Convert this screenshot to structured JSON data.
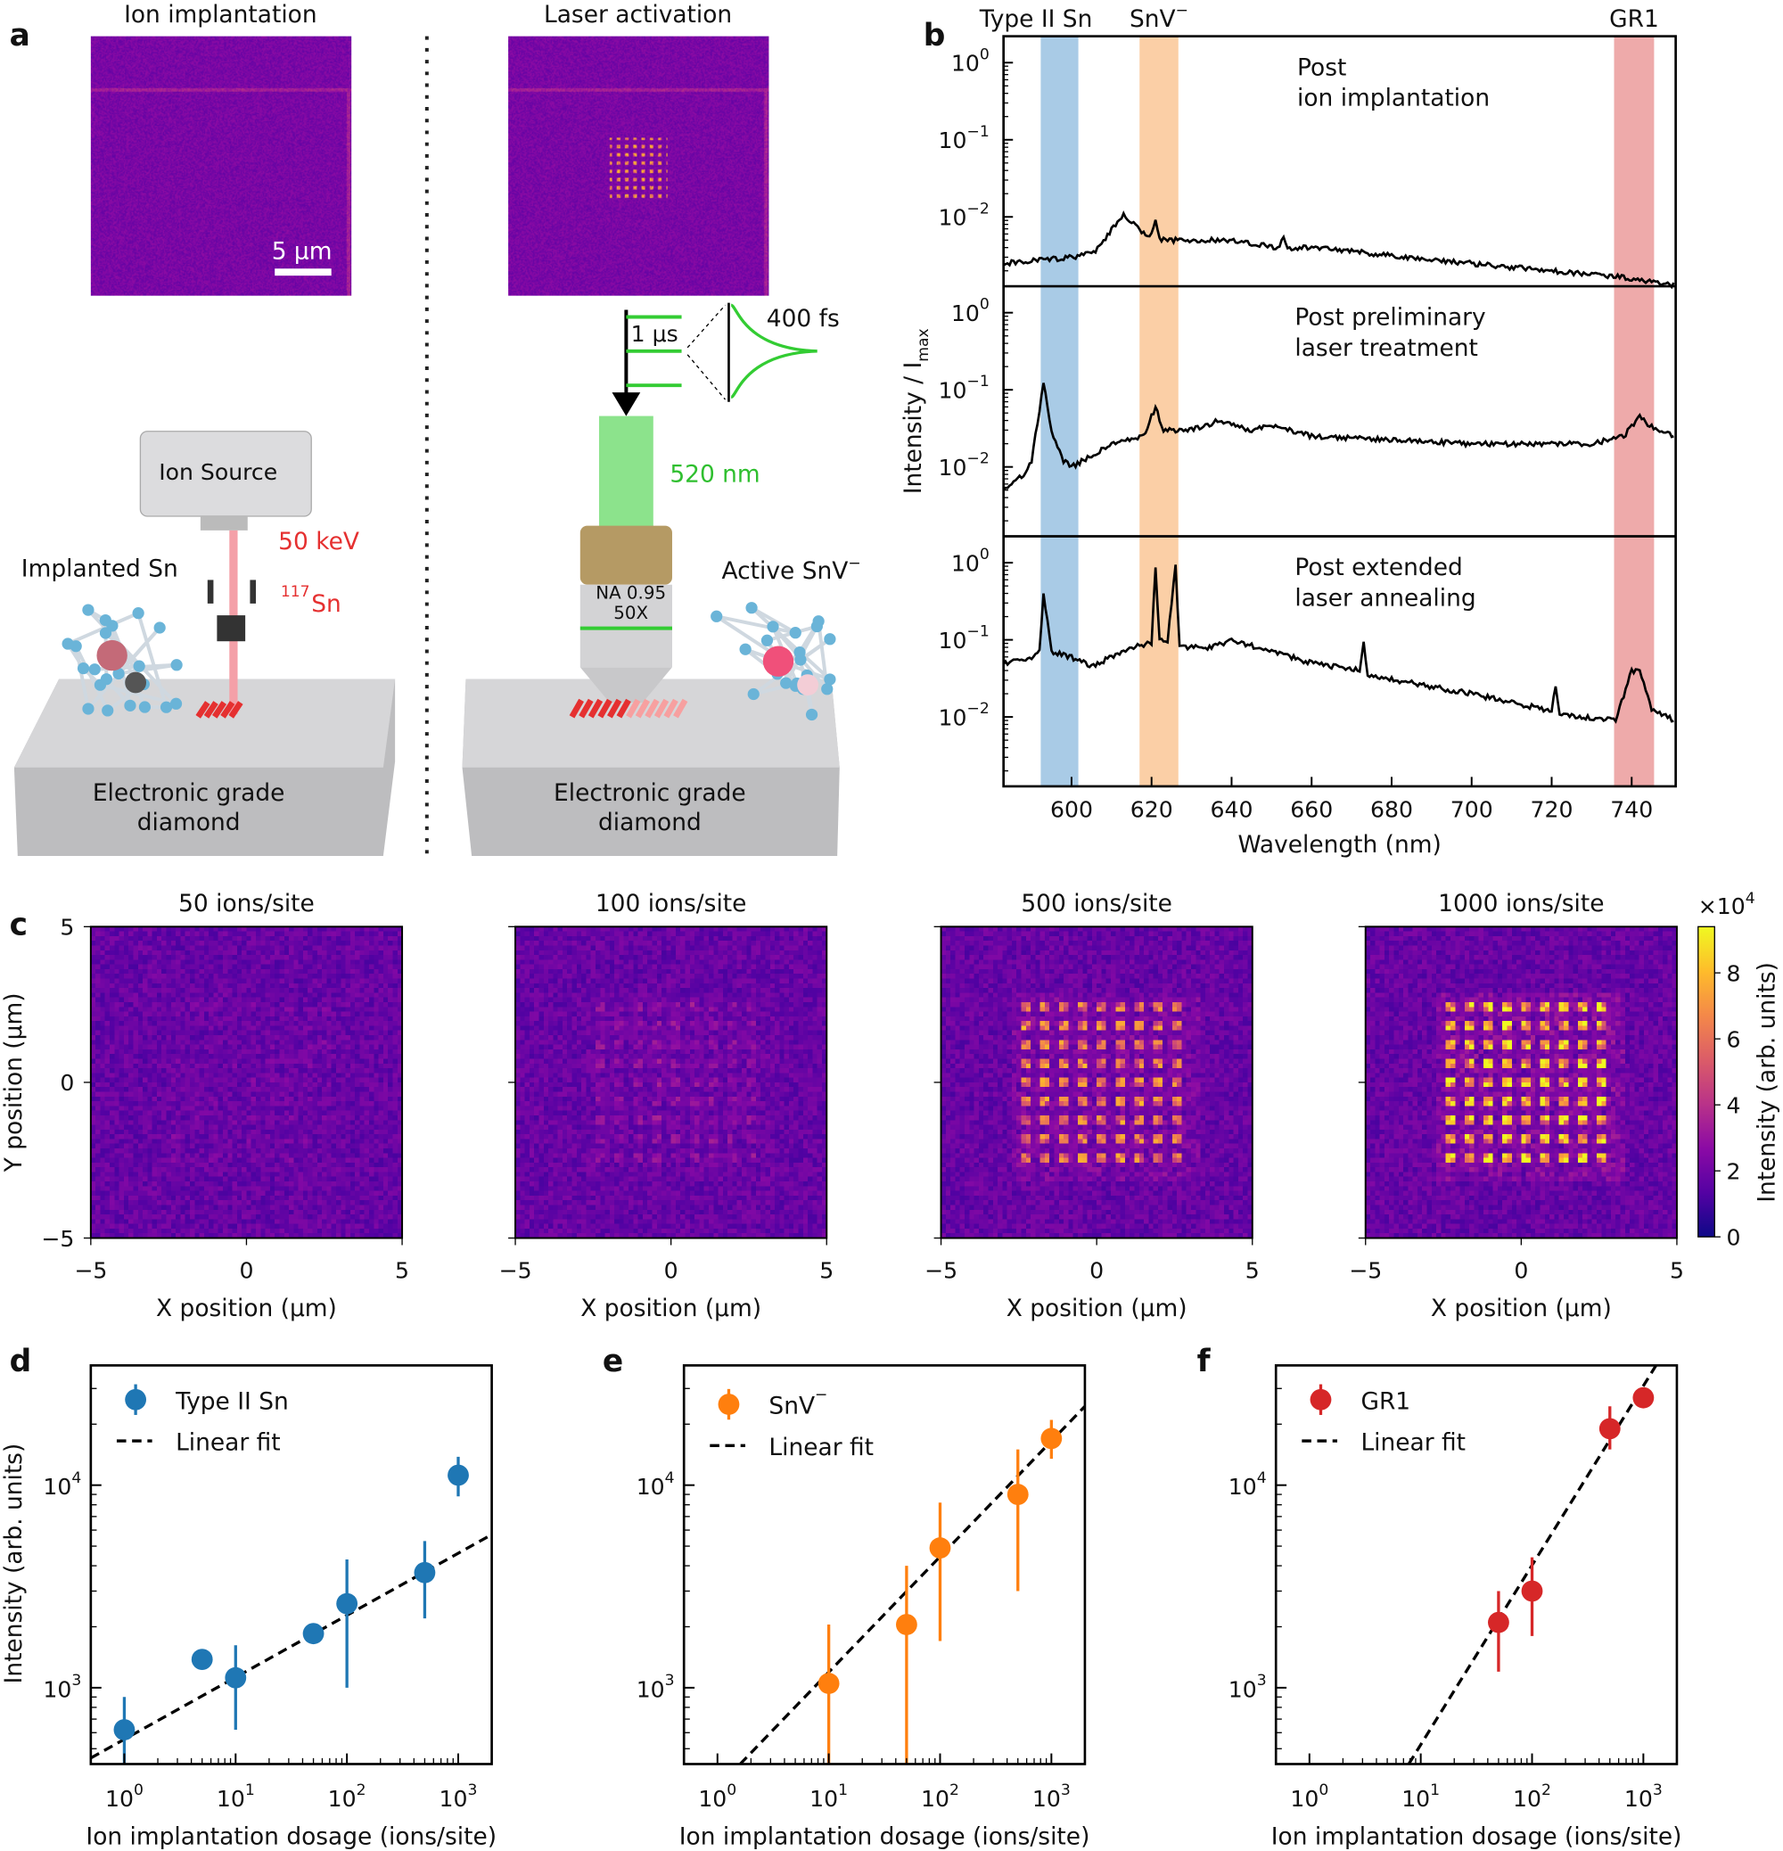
{
  "panel_labels": [
    "a",
    "b",
    "c",
    "d",
    "e",
    "f"
  ],
  "panel_a": {
    "left_title": "Ion implantation",
    "right_title": "Laser activation",
    "scale_bar": "5 μm",
    "ion_source": "Ion Source",
    "energy": "50 keV",
    "isotope_mass": "117",
    "isotope_symbol": "Sn",
    "implanted_label": "Implanted Sn",
    "active_label": "Active SnV",
    "active_label_sup": "−",
    "substrate_line1": "Electronic grade",
    "substrate_line2": "diamond",
    "pulse_period": "1 μs",
    "pulse_width": "400 fs",
    "wavelength": "520 nm",
    "objective_line1": "NA 0.95",
    "objective_line2": "50X",
    "colors": {
      "laser_green": "#33cc33",
      "ion_red": "#e53030",
      "image_purple": "#4a1a9a"
    }
  },
  "chart_data": [
    {
      "id": "b",
      "type": "line",
      "xlabel": "Wavelength (nm)",
      "ylabel": "Intensity / I",
      "ylabel_sub": "max",
      "xlim": [
        583,
        751
      ],
      "xticks": [
        600,
        620,
        640,
        660,
        680,
        700,
        720,
        740
      ],
      "yscale": "log",
      "ylim": [
        0.00126,
        2.2
      ],
      "yticks_exp": [
        "0",
        "−1",
        "−2"
      ],
      "bands": [
        {
          "label": "Type II Sn",
          "range": [
            592.3,
            601.7
          ],
          "color": "#a9cbe6"
        },
        {
          "label": "SnV",
          "label_sup": "−",
          "range": [
            617,
            626.7
          ],
          "color": "#fbcfa6"
        },
        {
          "label": "GR1",
          "range": [
            735.6,
            745.6
          ],
          "color": "#eeaaaa"
        }
      ],
      "series": [
        {
          "name": "Post ion implantation",
          "label_lines": [
            "Post",
            "ion implantation"
          ],
          "x": [
            583,
            600,
            606,
            613,
            618,
            620,
            621,
            622,
            640,
            652,
            653,
            654,
            660,
            700,
            740,
            751
          ],
          "y": [
            0.0025,
            0.003,
            0.0035,
            0.011,
            0.006,
            0.006,
            0.009,
            0.005,
            0.005,
            0.004,
            0.0055,
            0.004,
            0.004,
            0.0025,
            0.0016,
            0.0013
          ]
        },
        {
          "name": "Post preliminary laser treatment",
          "label_lines": [
            "Post preliminary",
            "laser treatment"
          ],
          "x": [
            583,
            588,
            590,
            593,
            595,
            598,
            600,
            610,
            618,
            621,
            623,
            630,
            637,
            645,
            650,
            660,
            700,
            730,
            738,
            742,
            746,
            751
          ],
          "y": [
            0.005,
            0.008,
            0.012,
            0.12,
            0.03,
            0.012,
            0.01,
            0.02,
            0.025,
            0.06,
            0.03,
            0.03,
            0.04,
            0.03,
            0.035,
            0.025,
            0.02,
            0.02,
            0.025,
            0.045,
            0.03,
            0.025
          ]
        },
        {
          "name": "Post extended laser annealing",
          "label_lines": [
            "Post extended",
            "laser annealing"
          ],
          "x": [
            583,
            590,
            592,
            593,
            595,
            600,
            605,
            615,
            620,
            621,
            622,
            624,
            626,
            627,
            635,
            640,
            660,
            672,
            673,
            674,
            700,
            720,
            721,
            722,
            736,
            740,
            742,
            745,
            751
          ],
          "y": [
            0.05,
            0.06,
            0.07,
            0.4,
            0.07,
            0.06,
            0.045,
            0.08,
            0.09,
            0.9,
            0.1,
            0.1,
            0.9,
            0.08,
            0.08,
            0.1,
            0.05,
            0.04,
            0.1,
            0.035,
            0.02,
            0.012,
            0.025,
            0.011,
            0.009,
            0.04,
            0.04,
            0.012,
            0.009
          ]
        }
      ]
    },
    {
      "id": "c",
      "type": "heatmap",
      "titles": [
        "50 ions/site",
        "100 ions/site",
        "500 ions/site",
        "1000 ions/site"
      ],
      "relative_brightness": [
        0.05,
        0.15,
        0.7,
        1.0
      ],
      "xlabel": "X position (μm)",
      "ylabel": "Y position (μm)",
      "xlim": [
        -5,
        5
      ],
      "ylim": [
        -5,
        5
      ],
      "xticks": [
        "−5",
        "0",
        "5"
      ],
      "yticks": [
        "5",
        "0",
        "−5"
      ],
      "colorbar": {
        "label": "Intensity (arb. units)",
        "multiplier": "×10",
        "multiplier_exp": "4",
        "ticks": [
          "0",
          "2",
          "4",
          "6",
          "8"
        ],
        "range": [
          0,
          9.4
        ],
        "colormap": "plasma"
      }
    },
    {
      "id": "d",
      "type": "scatter",
      "xscale": "log",
      "yscale": "log",
      "xlabel": "Ion implantation dosage (ions/site)",
      "ylabel": "Intensity (arb. units)",
      "xlim": [
        0.5,
        2000
      ],
      "ylim": [
        420,
        39000
      ],
      "series": [
        {
          "name": "Type II Sn",
          "color": "#1f77b4",
          "x": [
            1,
            5,
            10,
            50,
            100,
            500,
            1000
          ],
          "y": [
            620,
            1380,
            1120,
            1850,
            2600,
            3700,
            11200
          ],
          "err_low": [
            420,
            1250,
            620,
            1850,
            1000,
            2200,
            8800
          ],
          "err_high": [
            900,
            1530,
            1620,
            1850,
            4300,
            5300,
            13800
          ]
        },
        {
          "name": "Linear fit",
          "style": "dashed",
          "x": [
            0.5,
            2000
          ],
          "y": [
            450,
            5700
          ]
        }
      ]
    },
    {
      "id": "e",
      "type": "scatter",
      "xscale": "log",
      "yscale": "log",
      "xlabel": "Ion implantation dosage (ions/site)",
      "ylabel": "",
      "xlim": [
        0.5,
        2000
      ],
      "ylim": [
        420,
        39000
      ],
      "series": [
        {
          "name": "SnV",
          "name_sup": "−",
          "color": "#ff7f0e",
          "x": [
            10,
            50,
            100,
            500,
            1000
          ],
          "y": [
            1050,
            2050,
            4900,
            9000,
            17000
          ],
          "err_low": [
            420,
            420,
            1700,
            3000,
            13500
          ],
          "err_high": [
            2050,
            4000,
            8200,
            15000,
            21000
          ]
        },
        {
          "name": "Linear fit",
          "style": "dashed",
          "x": [
            1.6,
            2000
          ],
          "y": [
            420,
            24500
          ]
        }
      ]
    },
    {
      "id": "f",
      "type": "scatter",
      "xscale": "log",
      "yscale": "log",
      "xlabel": "Ion implantation dosage (ions/site)",
      "ylabel": "",
      "xlim": [
        0.5,
        2000
      ],
      "ylim": [
        420,
        39000
      ],
      "series": [
        {
          "name": "GR1",
          "color": "#d62728",
          "x": [
            50,
            100,
            500,
            1000
          ],
          "y": [
            2100,
            3000,
            19000,
            27000
          ],
          "err_low": [
            1200,
            1800,
            15000,
            24500
          ],
          "err_high": [
            3000,
            4400,
            24500,
            30000
          ]
        },
        {
          "name": "Linear fit",
          "style": "dashed",
          "x": [
            7.8,
            1300
          ],
          "y": [
            420,
            39000
          ]
        }
      ]
    }
  ],
  "log_xticks_exp": [
    "0",
    "1",
    "2",
    "3"
  ],
  "log_yticks_exp": [
    "4",
    "3"
  ]
}
